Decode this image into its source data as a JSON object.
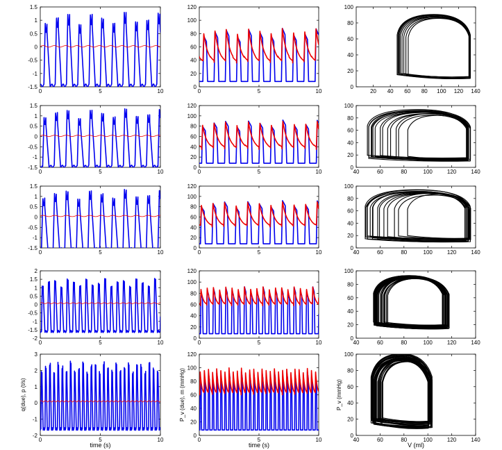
{
  "chart_data": [
    {
      "type": "line",
      "panel": "row1-left",
      "xlim": [
        0,
        10
      ],
      "ylim": [
        -1.5,
        1.5
      ],
      "xticks": [
        "0",
        "5",
        "10"
      ],
      "yticks": [
        "1.5",
        "1",
        "0.5",
        "0",
        "-0.5",
        "-1",
        "-1.5"
      ],
      "xlabel": "",
      "ylabel": "",
      "series": [
        {
          "color": "#0000ee",
          "style": "qd",
          "period": 0.94,
          "phase": 0.3,
          "min": -1.45,
          "max": 1.3,
          "values_desc": "oscillates between about -1.45 and 1.3"
        },
        {
          "color": "#ee0000",
          "style": "flat",
          "level": 0.02,
          "amp": 0.03,
          "period": 0.94
        }
      ]
    },
    {
      "type": "line",
      "panel": "row1-mid",
      "xlim": [
        0,
        10
      ],
      "ylim": [
        0,
        120
      ],
      "xticks": [
        "0",
        "5",
        "10"
      ],
      "yticks": [
        "120",
        "100",
        "80",
        "60",
        "40",
        "20",
        "0"
      ],
      "xlabel": "",
      "ylabel": "",
      "series": [
        {
          "color": "#0000ee",
          "style": "pv",
          "period": 0.94,
          "phase": 0.3,
          "min": 8,
          "max": 88
        },
        {
          "color": "#ee0000",
          "style": "ao",
          "period": 0.94,
          "phase": 0.3,
          "min": 35,
          "max": 88
        }
      ]
    },
    {
      "type": "line",
      "panel": "row1-right",
      "xlim": [
        0,
        140
      ],
      "ylim": [
        0,
        100
      ],
      "xticks": [
        "20",
        "40",
        "60",
        "80",
        "100",
        "120",
        "140"
      ],
      "yticks": [
        "100",
        "80",
        "60",
        "40",
        "20",
        "0"
      ],
      "xlabel": "",
      "ylabel": "",
      "loops": {
        "count": 9,
        "vmin": [
          48,
          60
        ],
        "vmax": [
          130,
          134
        ],
        "pmin": [
          10,
          14
        ],
        "pmax": [
          82,
          90
        ]
      }
    },
    {
      "type": "line",
      "panel": "row2-left",
      "xlim": [
        0,
        10
      ],
      "ylim": [
        -1.5,
        1.5
      ],
      "xticks": [
        "0",
        "5",
        "10"
      ],
      "yticks": [
        "1.5",
        "1",
        "0.5",
        "0",
        "-0.5",
        "-1",
        "-1.5"
      ],
      "xlabel": "",
      "ylabel": "",
      "series": [
        {
          "color": "#0000ee",
          "style": "qd",
          "period": 0.96,
          "phase": 0.2,
          "min": -1.45,
          "max": 1.35
        },
        {
          "color": "#ee0000",
          "style": "flat",
          "level": 0.03,
          "amp": 0.03,
          "period": 0.96
        }
      ]
    },
    {
      "type": "line",
      "panel": "row2-mid",
      "xlim": [
        0,
        10
      ],
      "ylim": [
        0,
        120
      ],
      "xticks": [
        "0",
        "5",
        "10"
      ],
      "yticks": [
        "120",
        "100",
        "80",
        "60",
        "40",
        "20",
        "0"
      ],
      "xlabel": "",
      "ylabel": "",
      "series": [
        {
          "color": "#0000ee",
          "style": "pv",
          "period": 0.96,
          "phase": 0.2,
          "min": 8,
          "max": 92
        },
        {
          "color": "#ee0000",
          "style": "ao",
          "period": 0.96,
          "phase": 0.2,
          "min": 35,
          "max": 90
        }
      ]
    },
    {
      "type": "line",
      "panel": "row2-right",
      "xlim": [
        40,
        140
      ],
      "ylim": [
        0,
        100
      ],
      "xticks": [
        "40",
        "60",
        "80",
        "100",
        "120",
        "140"
      ],
      "yticks": [
        "100",
        "80",
        "60",
        "40",
        "20",
        "0"
      ],
      "xlabel": "",
      "ylabel": "",
      "loops": {
        "count": 14,
        "vmin": [
          48,
          80
        ],
        "vmax": [
          128,
          136
        ],
        "pmin": [
          10,
          16
        ],
        "pmax": [
          78,
          92
        ]
      }
    },
    {
      "type": "line",
      "panel": "row3-left",
      "xlim": [
        0,
        10
      ],
      "ylim": [
        -1.5,
        1.5
      ],
      "xticks": [
        "0",
        "5",
        "10"
      ],
      "yticks": [
        "1.5",
        "1",
        "0.5",
        "0",
        "-0.5",
        "-1",
        "-1.5"
      ],
      "xlabel": "",
      "ylabel": "",
      "series": [
        {
          "color": "#0000ee",
          "style": "qd",
          "period": 0.97,
          "phase": 0.1,
          "min": -1.55,
          "max": 1.35
        },
        {
          "color": "#ee0000",
          "style": "flat",
          "level": 0.05,
          "amp": 0.03,
          "period": 0.97
        }
      ]
    },
    {
      "type": "line",
      "panel": "row3-mid",
      "xlim": [
        0,
        10
      ],
      "ylim": [
        0,
        120
      ],
      "xticks": [
        "0",
        "5",
        "10"
      ],
      "yticks": [
        "120",
        "100",
        "80",
        "60",
        "40",
        "20",
        "0"
      ],
      "xlabel": "",
      "ylabel": "",
      "series": [
        {
          "color": "#0000ee",
          "style": "pv",
          "period": 0.97,
          "phase": 0.1,
          "min": 8,
          "max": 92
        },
        {
          "color": "#ee0000",
          "style": "ao",
          "period": 0.97,
          "phase": 0.1,
          "min": 40,
          "max": 90
        }
      ]
    },
    {
      "type": "line",
      "panel": "row3-right",
      "xlim": [
        40,
        140
      ],
      "ylim": [
        0,
        100
      ],
      "xticks": [
        "40",
        "60",
        "80",
        "100",
        "120",
        "140"
      ],
      "yticks": [
        "100",
        "80",
        "60",
        "40",
        "20",
        "0"
      ],
      "xlabel": "",
      "ylabel": "",
      "loops": {
        "count": 14,
        "vmin": [
          46,
          80
        ],
        "vmax": [
          126,
          136
        ],
        "pmin": [
          10,
          16
        ],
        "pmax": [
          80,
          92
        ]
      }
    },
    {
      "type": "line",
      "panel": "row4-left",
      "xlim": [
        0,
        10
      ],
      "ylim": [
        -2,
        2
      ],
      "xticks": [
        "0",
        "5",
        "10"
      ],
      "yticks": [
        "2",
        "1.5",
        "1",
        "0.5",
        "0",
        "-0.5",
        "-1",
        "-1.5",
        "-2"
      ],
      "xlabel": "",
      "ylabel": "",
      "series": [
        {
          "color": "#0000ee",
          "style": "qd",
          "period": 0.52,
          "phase": 0.1,
          "min": -1.6,
          "max": 1.6
        },
        {
          "color": "#ee0000",
          "style": "flat",
          "level": 0.08,
          "amp": 0.03,
          "period": 0.52
        }
      ]
    },
    {
      "type": "line",
      "panel": "row4-mid",
      "xlim": [
        0,
        10
      ],
      "ylim": [
        0,
        120
      ],
      "xticks": [
        "0",
        "5",
        "10"
      ],
      "yticks": [
        "120",
        "100",
        "80",
        "60",
        "40",
        "20",
        "0"
      ],
      "xlabel": "",
      "ylabel": "",
      "series": [
        {
          "color": "#0000ee",
          "style": "pv",
          "period": 0.52,
          "phase": 0.1,
          "min": 8,
          "max": 92
        },
        {
          "color": "#ee0000",
          "style": "ao",
          "period": 0.52,
          "phase": 0.1,
          "min": 58,
          "max": 92
        }
      ]
    },
    {
      "type": "line",
      "panel": "row4-right",
      "xlim": [
        40,
        140
      ],
      "ylim": [
        0,
        100
      ],
      "xticks": [
        "40",
        "60",
        "80",
        "100",
        "120",
        "140"
      ],
      "yticks": [
        "100",
        "80",
        "60",
        "40",
        "20",
        "0"
      ],
      "xlabel": "",
      "ylabel": "",
      "loops": {
        "count": 30,
        "vmin": [
          54,
          66
        ],
        "vmax": [
          106,
          118
        ],
        "pmin": [
          14,
          20
        ],
        "pmax": [
          85,
          92
        ]
      }
    },
    {
      "type": "line",
      "panel": "row5-left",
      "xlim": [
        0,
        10
      ],
      "ylim": [
        -2,
        3
      ],
      "xticks": [
        "0",
        "5",
        "10"
      ],
      "yticks": [
        "3",
        "2",
        "1",
        "0",
        "-1",
        "-2"
      ],
      "xlabel": "time (s)",
      "ylabel": "q(due), p (t/s)",
      "series": [
        {
          "color": "#0000ee",
          "style": "qd",
          "period": 0.345,
          "phase": 0.05,
          "min": -1.6,
          "max": 2.6
        },
        {
          "color": "#ee0000",
          "style": "flat",
          "level": 0.1,
          "amp": 0.04,
          "period": 0.345
        }
      ]
    },
    {
      "type": "line",
      "panel": "row5-mid",
      "xlim": [
        0,
        10
      ],
      "ylim": [
        0,
        120
      ],
      "xticks": [
        "0",
        "5",
        "10"
      ],
      "yticks": [
        "120",
        "100",
        "80",
        "60",
        "40",
        "20",
        "0"
      ],
      "xlabel": "time (s)",
      "ylabel": "P_v (due), m (mmHg)",
      "series": [
        {
          "color": "#0000ee",
          "style": "pv",
          "period": 0.345,
          "phase": 0.05,
          "min": 8,
          "max": 95
        },
        {
          "color": "#ee0000",
          "style": "ao",
          "period": 0.345,
          "phase": 0.05,
          "min": 60,
          "max": 100
        }
      ]
    },
    {
      "type": "line",
      "panel": "row5-right",
      "xlim": [
        40,
        140
      ],
      "ylim": [
        0,
        100
      ],
      "xticks": [
        "40",
        "60",
        "80",
        "100",
        "120",
        "140"
      ],
      "yticks": [
        "100",
        "80",
        "60",
        "40",
        "20",
        "0"
      ],
      "xlabel": "V (ml)",
      "ylabel": "P_v (mmHg)",
      "loops": {
        "count": 30,
        "vmin": [
          52,
          62
        ],
        "vmax": [
          96,
          104
        ],
        "pmin": [
          8,
          18
        ],
        "pmax": [
          84,
          98
        ]
      }
    }
  ]
}
